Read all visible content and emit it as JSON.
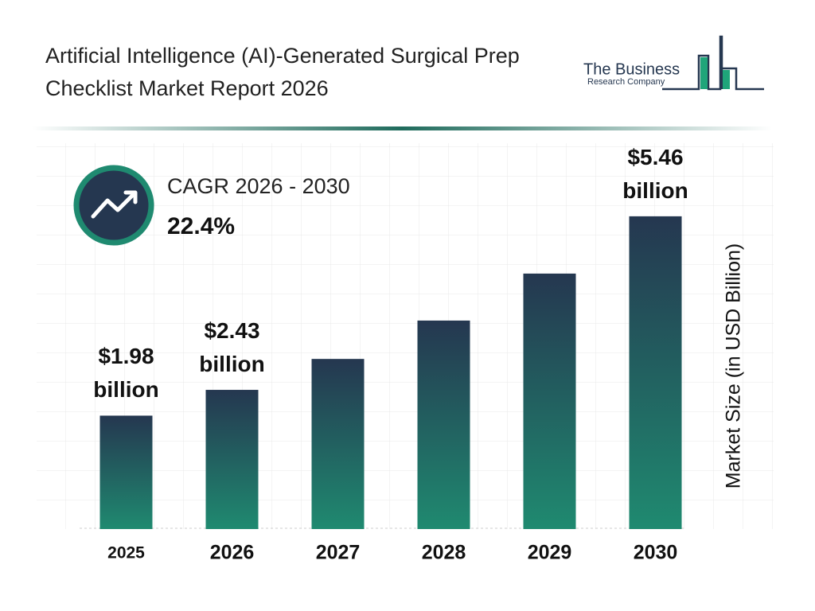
{
  "chart_data": {
    "type": "bar",
    "title": "Artificial Intelligence (AI)-Generated Surgical Prep Checklist Market Report 2026",
    "categories": [
      "2025",
      "2026",
      "2027",
      "2028",
      "2029",
      "2030"
    ],
    "values": [
      1.98,
      2.43,
      2.97,
      3.64,
      4.46,
      5.46
    ],
    "value_labels": [
      "$1.98 billion",
      "$2.43 billion",
      null,
      null,
      null,
      "$5.46 billion"
    ],
    "colors": {
      "top": "#253750",
      "bottom": "#1f8a70"
    },
    "ylim": [
      0,
      6
    ],
    "y_label": "Market Size (in USD Billion)",
    "cagr_label": "CAGR 2026 - 2030",
    "cagr_value": "22.4%"
  },
  "logo": {
    "line1": "The Business",
    "line2": "Research Company"
  }
}
